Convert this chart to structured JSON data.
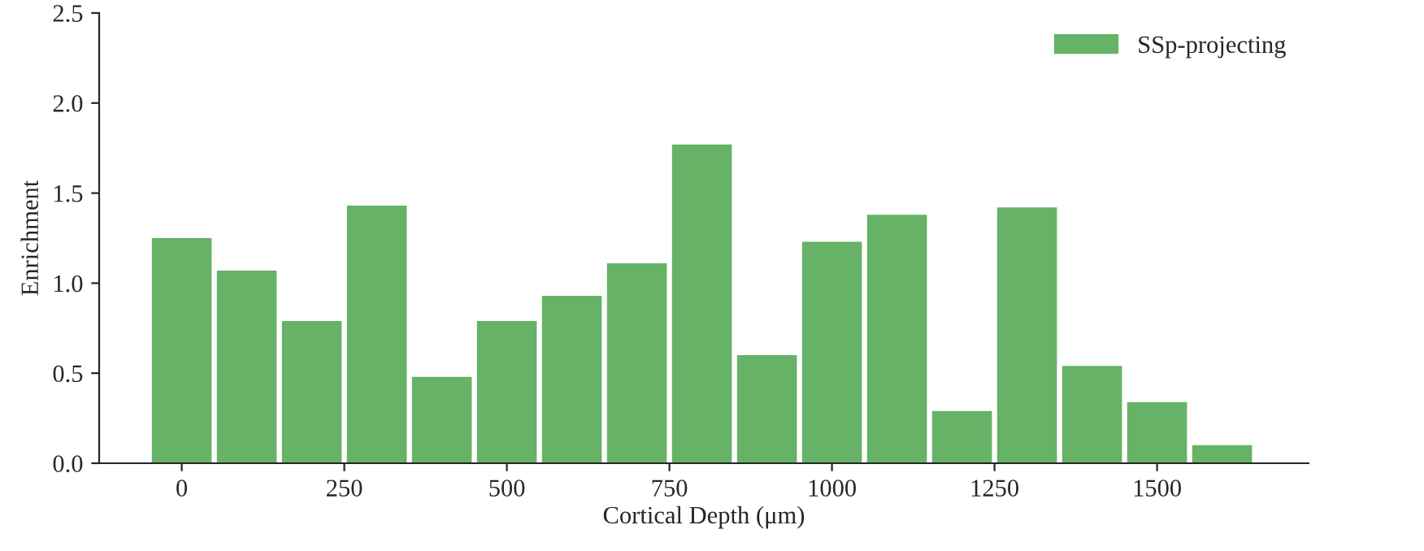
{
  "chart_data": {
    "type": "bar",
    "x": [
      0,
      100,
      200,
      300,
      400,
      500,
      600,
      700,
      800,
      900,
      1000,
      1100,
      1200,
      1300,
      1400,
      1500,
      1600
    ],
    "series": [
      {
        "name": "SSp-projecting",
        "color": "#66b266",
        "values": [
          1.25,
          1.07,
          0.79,
          1.43,
          0.48,
          0.79,
          0.93,
          1.11,
          1.77,
          0.6,
          1.23,
          1.38,
          0.29,
          1.42,
          0.54,
          0.34,
          0.1
        ]
      }
    ],
    "xlabel": "Cortical Depth (μm)",
    "ylabel": "Enrichment",
    "xlim": [
      -127,
      1733
    ],
    "xticks": [
      0,
      250,
      500,
      750,
      1000,
      1250,
      1500
    ],
    "ylim": [
      0,
      2.5
    ],
    "yticks": [
      {
        "value": 0,
        "label": "0.0"
      },
      0.5,
      {
        "value": 1,
        "label": "1.0"
      },
      1.5,
      {
        "value": 2,
        "label": "2.0"
      },
      2.5
    ],
    "grid": false,
    "legend": "top right"
  }
}
